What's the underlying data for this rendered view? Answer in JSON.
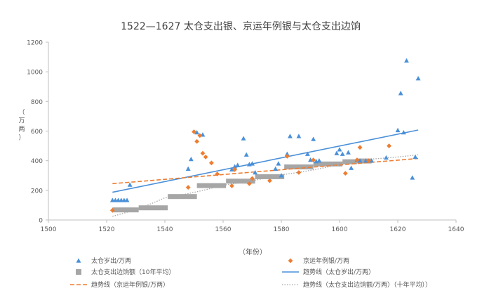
{
  "chart_data": {
    "type": "scatter",
    "title": "1522—1627 太仓支出银、京运年例银与太仓支出边饷",
    "xlabel": "（年份）",
    "ylabel": "（万两）",
    "xlim": [
      1500,
      1640
    ],
    "ylim": [
      0,
      1200
    ],
    "xticks": [
      1500,
      1520,
      1540,
      1560,
      1580,
      1600,
      1620,
      1640
    ],
    "yticks": [
      0,
      200,
      400,
      600,
      800,
      1000,
      1200
    ],
    "grid": false,
    "legend_position": "bottom",
    "series": [
      {
        "name": "太仓岁出/万两",
        "kind": "scatter",
        "marker": "triangle",
        "color": "#4a90d9",
        "points": [
          [
            1522,
            133
          ],
          [
            1523,
            133
          ],
          [
            1524,
            133
          ],
          [
            1525,
            133
          ],
          [
            1526,
            133
          ],
          [
            1527,
            133
          ],
          [
            1528,
            237
          ],
          [
            1548,
            345
          ],
          [
            1549,
            410
          ],
          [
            1551,
            590
          ],
          [
            1553,
            575
          ],
          [
            1563,
            340
          ],
          [
            1564,
            360
          ],
          [
            1565,
            370
          ],
          [
            1567,
            550
          ],
          [
            1568,
            440
          ],
          [
            1569,
            375
          ],
          [
            1570,
            380
          ],
          [
            1571,
            320
          ],
          [
            1578,
            345
          ],
          [
            1579,
            380
          ],
          [
            1580,
            300
          ],
          [
            1582,
            445
          ],
          [
            1583,
            565
          ],
          [
            1586,
            565
          ],
          [
            1589,
            445
          ],
          [
            1590,
            405
          ],
          [
            1591,
            545
          ],
          [
            1592,
            395
          ],
          [
            1593,
            400
          ],
          [
            1599,
            450
          ],
          [
            1600,
            475
          ],
          [
            1601,
            445
          ],
          [
            1603,
            455
          ],
          [
            1604,
            350
          ],
          [
            1606,
            405
          ],
          [
            1607,
            400
          ],
          [
            1609,
            400
          ],
          [
            1611,
            400
          ],
          [
            1616,
            420
          ],
          [
            1620,
            605
          ],
          [
            1621,
            855
          ],
          [
            1622,
            590
          ],
          [
            1623,
            1075
          ],
          [
            1625,
            285
          ],
          [
            1626,
            425
          ],
          [
            1627,
            955
          ]
        ]
      },
      {
        "name": "京运年例银/万两",
        "kind": "scatter",
        "marker": "diamond",
        "color": "#ed7d31",
        "points": [
          [
            1522,
            65
          ],
          [
            1548,
            220
          ],
          [
            1550,
            595
          ],
          [
            1551,
            530
          ],
          [
            1552,
            570
          ],
          [
            1553,
            450
          ],
          [
            1554,
            425
          ],
          [
            1556,
            385
          ],
          [
            1558,
            310
          ],
          [
            1563,
            230
          ],
          [
            1564,
            340
          ],
          [
            1569,
            245
          ],
          [
            1570,
            280
          ],
          [
            1576,
            265
          ],
          [
            1582,
            430
          ],
          [
            1586,
            320
          ],
          [
            1591,
            405
          ],
          [
            1602,
            315
          ],
          [
            1606,
            405
          ],
          [
            1607,
            490
          ],
          [
            1610,
            400
          ],
          [
            1617,
            500
          ]
        ]
      },
      {
        "name": "太仓支出边饷额（10年平均）",
        "kind": "step",
        "marker": "square",
        "color": "#a6a6a6",
        "segments": [
          [
            1522,
            1531,
            68
          ],
          [
            1531,
            1541,
            82
          ],
          [
            1541,
            1551,
            158
          ],
          [
            1551,
            1561,
            232
          ],
          [
            1561,
            1571,
            262
          ],
          [
            1571,
            1581,
            292
          ],
          [
            1581,
            1591,
            358
          ],
          [
            1591,
            1601,
            378
          ],
          [
            1601,
            1606,
            393
          ],
          [
            1606,
            1611,
            398
          ]
        ]
      },
      {
        "name": "趋势线（太仓岁出/万两）",
        "kind": "trend",
        "style": "solid",
        "color": "#4a90d9",
        "points": [
          [
            1522,
            187
          ],
          [
            1627,
            607
          ]
        ]
      },
      {
        "name": "趋势线（京运年例银/万两）",
        "kind": "trend",
        "style": "dashed",
        "color": "#ed7d31",
        "points": [
          [
            1522,
            245
          ],
          [
            1627,
            415
          ]
        ]
      },
      {
        "name": "趋势线（太仓支出边饷额/万两）（十年平均））",
        "kind": "trend",
        "style": "dotted",
        "color": "#a6a6a6",
        "points": [
          [
            1522,
            25
          ],
          [
            1540,
            150
          ],
          [
            1560,
            235
          ],
          [
            1580,
            305
          ],
          [
            1600,
            375
          ],
          [
            1610,
            410
          ],
          [
            1627,
            440
          ]
        ]
      }
    ],
    "legend": [
      {
        "label": "太仓岁出/万两",
        "symbol": "triangle",
        "color": "#4a90d9"
      },
      {
        "label": "京运年例银/万两",
        "symbol": "diamond",
        "color": "#ed7d31"
      },
      {
        "label": "太仓支出边饷额（10年平均）",
        "symbol": "square",
        "color": "#a6a6a6"
      },
      {
        "label": "趋势线（太仓岁出/万两）",
        "symbol": "solid-line",
        "color": "#4a90d9"
      },
      {
        "label": "趋势线（京运年例银/万两）",
        "symbol": "dashed-line",
        "color": "#ed7d31"
      },
      {
        "label": "趋势线（太仓支出边饷额/万两）（十年平均））",
        "symbol": "dotted-line",
        "color": "#a6a6a6"
      }
    ]
  }
}
